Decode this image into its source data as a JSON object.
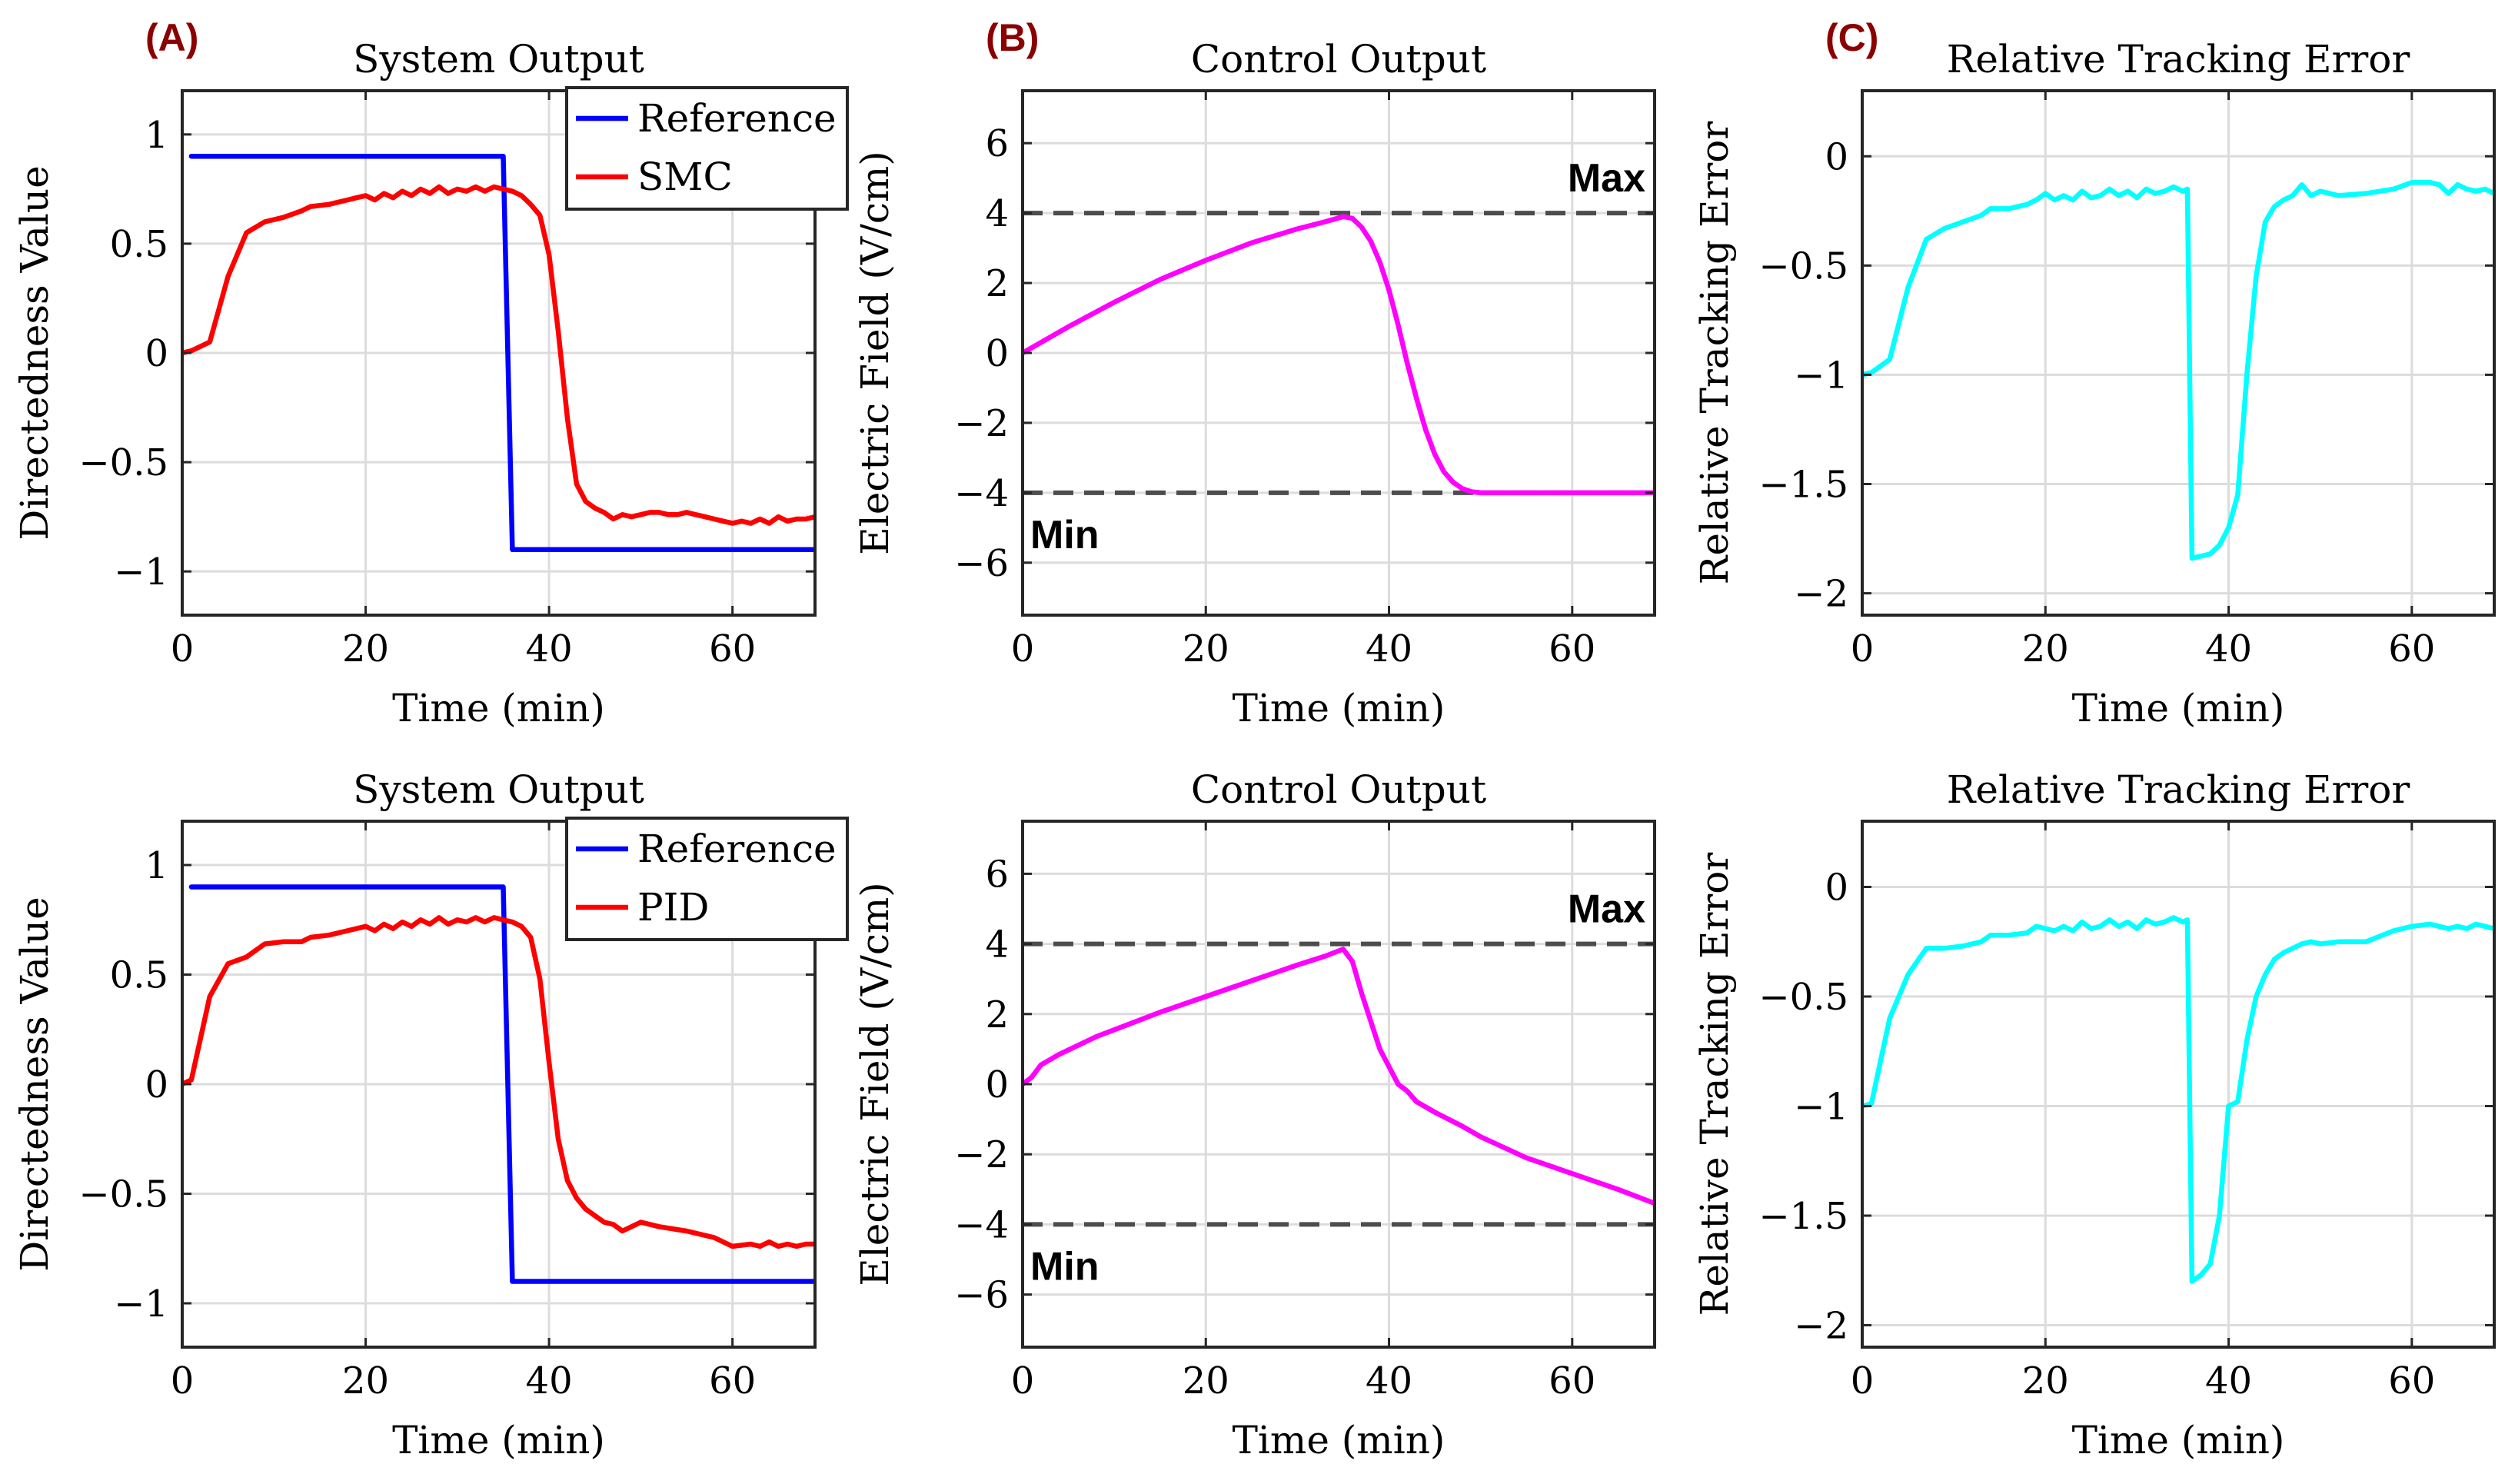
{
  "chart_data": [
    {
      "id": "A-top",
      "panel_letter": "(A)",
      "type": "line",
      "title": "System Output",
      "xlabel": "Time (min)",
      "ylabel": "Directedness Value",
      "xlim": [
        0,
        69
      ],
      "ylim": [
        -1.2,
        1.2
      ],
      "xticks": [
        0,
        20,
        40,
        60
      ],
      "xtick_labels": [
        "0",
        "20",
        "40",
        "60"
      ],
      "yticks": [
        -1,
        -0.5,
        0,
        0.5,
        1
      ],
      "ytick_labels": [
        "−1",
        "−0.5",
        "0",
        "0.5",
        "1"
      ],
      "legend": {
        "position": "top-right",
        "entries": [
          "Reference",
          "SMC"
        ]
      },
      "series": [
        {
          "name": "Reference",
          "color": "#0000ff",
          "x": [
            1,
            35,
            36,
            69
          ],
          "y": [
            0.9,
            0.9,
            -0.9,
            -0.9
          ]
        },
        {
          "name": "SMC",
          "color": "#ff0000",
          "x": [
            0,
            1,
            3,
            5,
            7,
            9,
            11,
            13,
            14,
            16,
            18,
            19,
            20,
            21,
            22,
            23,
            24,
            25,
            26,
            27,
            28,
            29,
            30,
            31,
            32,
            33,
            34,
            35,
            36,
            37,
            38,
            39,
            40,
            41,
            42,
            43,
            44,
            45,
            46,
            47,
            48,
            49,
            50,
            51,
            52,
            53,
            54,
            55,
            56,
            57,
            58,
            59,
            60,
            61,
            62,
            63,
            64,
            65,
            66,
            67,
            68,
            69
          ],
          "y": [
            0.0,
            0.01,
            0.05,
            0.35,
            0.55,
            0.6,
            0.62,
            0.65,
            0.67,
            0.68,
            0.7,
            0.71,
            0.72,
            0.7,
            0.73,
            0.71,
            0.74,
            0.72,
            0.75,
            0.73,
            0.76,
            0.73,
            0.75,
            0.74,
            0.76,
            0.74,
            0.76,
            0.75,
            0.74,
            0.72,
            0.68,
            0.63,
            0.45,
            0.1,
            -0.3,
            -0.6,
            -0.68,
            -0.71,
            -0.73,
            -0.76,
            -0.74,
            -0.75,
            -0.74,
            -0.73,
            -0.73,
            -0.74,
            -0.74,
            -0.73,
            -0.74,
            -0.75,
            -0.76,
            -0.77,
            -0.78,
            -0.77,
            -0.78,
            -0.76,
            -0.78,
            -0.75,
            -0.77,
            -0.76,
            -0.76,
            -0.75
          ]
        }
      ]
    },
    {
      "id": "B-top",
      "panel_letter": "(B)",
      "type": "line",
      "title": "Control Output",
      "xlabel": "Time (min)",
      "ylabel": "Electric Field (V/cm)",
      "xlim": [
        0,
        69
      ],
      "ylim": [
        -7.5,
        7.5
      ],
      "xticks": [
        0,
        20,
        40,
        60
      ],
      "xtick_labels": [
        "0",
        "20",
        "40",
        "60"
      ],
      "yticks": [
        -6,
        -4,
        -2,
        0,
        2,
        4,
        6
      ],
      "ytick_labels": [
        "−6",
        "−4",
        "−2",
        "0",
        "2",
        "4",
        "6"
      ],
      "hlines": [
        {
          "y": 4,
          "label": "Max"
        },
        {
          "y": -4,
          "label": "Min"
        }
      ],
      "series": [
        {
          "name": "Control",
          "color": "#ff00ff",
          "x": [
            0,
            5,
            10,
            15,
            20,
            25,
            30,
            33,
            35,
            36,
            37,
            38,
            39,
            40,
            41,
            42,
            43,
            44,
            45,
            46,
            47,
            48,
            49,
            50,
            52,
            55,
            60,
            65,
            69
          ],
          "y": [
            0.0,
            0.75,
            1.45,
            2.1,
            2.65,
            3.15,
            3.55,
            3.75,
            3.9,
            3.85,
            3.6,
            3.2,
            2.6,
            1.8,
            0.8,
            -0.3,
            -1.3,
            -2.2,
            -2.9,
            -3.4,
            -3.7,
            -3.88,
            -3.97,
            -4.0,
            -4.0,
            -4.0,
            -4.0,
            -4.0,
            -4.0
          ]
        }
      ]
    },
    {
      "id": "C-top",
      "panel_letter": "(C)",
      "type": "line",
      "title": "Relative Tracking Error",
      "xlabel": "Time (min)",
      "ylabel": "Relative Tracking Error",
      "xlim": [
        0,
        69
      ],
      "ylim": [
        -2.1,
        0.3
      ],
      "xticks": [
        0,
        20,
        40,
        60
      ],
      "xtick_labels": [
        "0",
        "20",
        "40",
        "60"
      ],
      "yticks": [
        -2,
        -1.5,
        -1,
        -0.5,
        0
      ],
      "ytick_labels": [
        "−2",
        "−1.5",
        "−1",
        "−0.5",
        "0"
      ],
      "series": [
        {
          "name": "Error",
          "color": "#00ffff",
          "x": [
            0,
            1,
            3,
            5,
            7,
            9,
            11,
            13,
            14,
            16,
            18,
            19,
            20,
            21,
            22,
            23,
            24,
            25,
            26,
            27,
            28,
            29,
            30,
            31,
            32,
            33,
            34,
            35,
            35.5,
            36,
            38,
            39,
            40,
            41,
            42,
            43,
            44,
            45,
            46,
            47,
            48,
            49,
            50,
            52,
            55,
            58,
            60,
            62,
            63,
            64,
            65,
            66,
            67,
            68,
            69
          ],
          "y": [
            -1.0,
            -0.99,
            -0.93,
            -0.6,
            -0.38,
            -0.33,
            -0.3,
            -0.27,
            -0.24,
            -0.24,
            -0.22,
            -0.2,
            -0.17,
            -0.2,
            -0.18,
            -0.2,
            -0.16,
            -0.19,
            -0.18,
            -0.15,
            -0.18,
            -0.16,
            -0.19,
            -0.15,
            -0.17,
            -0.16,
            -0.14,
            -0.16,
            -0.15,
            -1.84,
            -1.82,
            -1.78,
            -1.7,
            -1.55,
            -1.0,
            -0.55,
            -0.3,
            -0.23,
            -0.2,
            -0.18,
            -0.13,
            -0.18,
            -0.16,
            -0.18,
            -0.17,
            -0.15,
            -0.12,
            -0.12,
            -0.13,
            -0.17,
            -0.13,
            -0.15,
            -0.16,
            -0.15,
            -0.17
          ]
        }
      ]
    },
    {
      "id": "A-bottom",
      "type": "line",
      "title": "System Output",
      "xlabel": "Time (min)",
      "ylabel": "Directedness Value",
      "xlim": [
        0,
        69
      ],
      "ylim": [
        -1.2,
        1.2
      ],
      "xticks": [
        0,
        20,
        40,
        60
      ],
      "xtick_labels": [
        "0",
        "20",
        "40",
        "60"
      ],
      "yticks": [
        -1,
        -0.5,
        0,
        0.5,
        1
      ],
      "ytick_labels": [
        "−1",
        "−0.5",
        "0",
        "0.5",
        "1"
      ],
      "legend": {
        "position": "top-right",
        "entries": [
          "Reference",
          "PID"
        ]
      },
      "series": [
        {
          "name": "Reference",
          "color": "#0000ff",
          "x": [
            1,
            35,
            36,
            69
          ],
          "y": [
            0.9,
            0.9,
            -0.9,
            -0.9
          ]
        },
        {
          "name": "PID",
          "color": "#ff0000",
          "x": [
            0,
            1,
            3,
            5,
            7,
            9,
            11,
            13,
            14,
            16,
            18,
            19,
            20,
            21,
            22,
            23,
            24,
            25,
            26,
            27,
            28,
            29,
            30,
            31,
            32,
            33,
            34,
            35,
            36,
            37,
            38,
            39,
            40,
            41,
            42,
            43,
            44,
            45,
            46,
            47,
            48,
            49,
            50,
            52,
            55,
            58,
            60,
            62,
            63,
            64,
            65,
            66,
            67,
            68,
            69
          ],
          "y": [
            0.0,
            0.02,
            0.4,
            0.55,
            0.58,
            0.64,
            0.65,
            0.65,
            0.67,
            0.68,
            0.7,
            0.71,
            0.72,
            0.7,
            0.73,
            0.71,
            0.74,
            0.72,
            0.75,
            0.73,
            0.76,
            0.73,
            0.75,
            0.74,
            0.76,
            0.74,
            0.76,
            0.75,
            0.74,
            0.72,
            0.67,
            0.48,
            0.1,
            -0.25,
            -0.44,
            -0.52,
            -0.57,
            -0.6,
            -0.63,
            -0.64,
            -0.67,
            -0.65,
            -0.63,
            -0.65,
            -0.67,
            -0.7,
            -0.74,
            -0.73,
            -0.74,
            -0.72,
            -0.74,
            -0.73,
            -0.74,
            -0.73,
            -0.73
          ]
        }
      ]
    },
    {
      "id": "B-bottom",
      "type": "line",
      "title": "Control Output",
      "xlabel": "Time (min)",
      "ylabel": "Electric Field (V/cm)",
      "xlim": [
        0,
        69
      ],
      "ylim": [
        -7.5,
        7.5
      ],
      "xticks": [
        0,
        20,
        40,
        60
      ],
      "xtick_labels": [
        "0",
        "20",
        "40",
        "60"
      ],
      "yticks": [
        -6,
        -4,
        -2,
        0,
        2,
        4,
        6
      ],
      "ytick_labels": [
        "−6",
        "−4",
        "−2",
        "0",
        "2",
        "4",
        "6"
      ],
      "hlines": [
        {
          "y": 4,
          "label": "Max"
        },
        {
          "y": -4,
          "label": "Min"
        }
      ],
      "series": [
        {
          "name": "Control",
          "color": "#ff00ff",
          "x": [
            0,
            1,
            2,
            4,
            6,
            8,
            10,
            12,
            15,
            20,
            25,
            30,
            33,
            35,
            36,
            37,
            38,
            39,
            40,
            41,
            42,
            43,
            45,
            48,
            50,
            55,
            60,
            65,
            69
          ],
          "y": [
            0.0,
            0.2,
            0.55,
            0.85,
            1.1,
            1.35,
            1.55,
            1.75,
            2.05,
            2.5,
            2.95,
            3.4,
            3.65,
            3.85,
            3.5,
            2.6,
            1.8,
            1.0,
            0.5,
            0.0,
            -0.2,
            -0.5,
            -0.8,
            -1.2,
            -1.5,
            -2.1,
            -2.55,
            -3.0,
            -3.4
          ]
        }
      ]
    },
    {
      "id": "C-bottom",
      "type": "line",
      "title": "Relative Tracking Error",
      "xlabel": "Time (min)",
      "ylabel": "Relative Tracking Error",
      "xlim": [
        0,
        69
      ],
      "ylim": [
        -2.1,
        0.3
      ],
      "xticks": [
        0,
        20,
        40,
        60
      ],
      "xtick_labels": [
        "0",
        "20",
        "40",
        "60"
      ],
      "yticks": [
        -2,
        -1.5,
        -1,
        -0.5,
        0
      ],
      "ytick_labels": [
        "−2",
        "−1.5",
        "−1",
        "−0.5",
        "0"
      ],
      "series": [
        {
          "name": "Error",
          "color": "#00ffff",
          "x": [
            0,
            1,
            3,
            5,
            7,
            9,
            11,
            13,
            14,
            16,
            18,
            19,
            20,
            21,
            22,
            23,
            24,
            25,
            26,
            27,
            28,
            29,
            30,
            31,
            32,
            33,
            34,
            35,
            35.5,
            36,
            37,
            38,
            39,
            40,
            41,
            42,
            43,
            44,
            45,
            46,
            47,
            48,
            49,
            50,
            52,
            55,
            58,
            60,
            62,
            63,
            64,
            65,
            66,
            67,
            68,
            69
          ],
          "y": [
            -1.0,
            -0.99,
            -0.6,
            -0.4,
            -0.28,
            -0.28,
            -0.27,
            -0.25,
            -0.22,
            -0.22,
            -0.21,
            -0.18,
            -0.19,
            -0.2,
            -0.18,
            -0.2,
            -0.16,
            -0.19,
            -0.18,
            -0.15,
            -0.18,
            -0.16,
            -0.19,
            -0.15,
            -0.17,
            -0.16,
            -0.14,
            -0.16,
            -0.15,
            -1.8,
            -1.77,
            -1.72,
            -1.5,
            -1.0,
            -0.98,
            -0.7,
            -0.5,
            -0.4,
            -0.33,
            -0.3,
            -0.28,
            -0.26,
            -0.25,
            -0.26,
            -0.25,
            -0.25,
            -0.2,
            -0.18,
            -0.17,
            -0.18,
            -0.19,
            -0.18,
            -0.19,
            -0.17,
            -0.18,
            -0.19
          ]
        }
      ]
    }
  ]
}
